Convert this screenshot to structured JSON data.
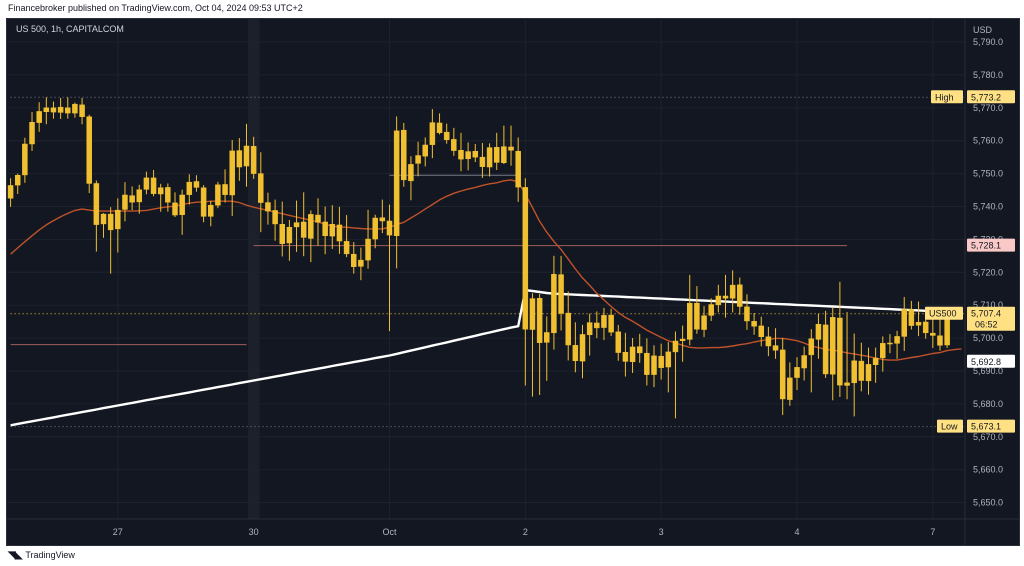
{
  "header": {
    "published_text": "Financebroker published on TradingView.com, Oct 04, 2024 09:53 UTC+2"
  },
  "legend": {
    "symbol_text": "US 500, 1h, CAPITALCOM"
  },
  "footer": {
    "brand": "TradingView",
    "logo_icon": "tradingview-logo-icon"
  },
  "chart_data": {
    "type": "candlestick",
    "currency_label": "USD",
    "y_ticks": [
      "5,790.0",
      "5,780.0",
      "5,770.0",
      "5,760.0",
      "5,750.0",
      "5,740.0",
      "5,730.0",
      "5,720.0",
      "5,710.0",
      "5,700.0",
      "5,690.0",
      "5,680.0",
      "5,670.0",
      "5,660.0",
      "5,650.0"
    ],
    "y_tick_values": [
      5790,
      5780,
      5770,
      5760,
      5750,
      5740,
      5730,
      5720,
      5710,
      5700,
      5690,
      5680,
      5670,
      5660,
      5650
    ],
    "ylim": [
      5645,
      5797
    ],
    "x_ticks": [
      {
        "label": "27",
        "index": 15
      },
      {
        "label": "30",
        "index": 34
      },
      {
        "label": "Oct",
        "index": 53
      },
      {
        "label": "2",
        "index": 72
      },
      {
        "label": "3",
        "index": 91
      },
      {
        "label": "4",
        "index": 110
      },
      {
        "label": "7",
        "index": 129
      }
    ],
    "candle_count_visible": 134,
    "price_labels": [
      {
        "name": "High",
        "value": 5773.2,
        "text": "5,773.2"
      },
      {
        "name": "US500",
        "value": 5707.4,
        "text": "5,707.4",
        "countdown": "06:52"
      },
      {
        "name": "",
        "value": 5692.8,
        "text": "5,692.8"
      },
      {
        "name": "Low",
        "value": 5673.1,
        "text": "5,673.1"
      },
      {
        "name": "",
        "value": 5728.1,
        "text": "5,728.1"
      }
    ],
    "horizontal_levels": [
      {
        "value": 5773.2,
        "from_index": 0,
        "to_index": 134,
        "color": "#787b86",
        "style": "dotted"
      },
      {
        "value": 5707.4,
        "from_index": 0,
        "to_index": 134,
        "color": "#f0c030",
        "style": "dotted"
      },
      {
        "value": 5728.1,
        "from_index": 34,
        "to_index": 117,
        "color": "#a0605a",
        "style": "solid"
      },
      {
        "value": 5698.0,
        "from_index": 0,
        "to_index": 33,
        "color": "#a0605a",
        "style": "solid"
      },
      {
        "value": 5749.5,
        "from_index": 53,
        "to_index": 71,
        "color": "#787b86",
        "style": "solid"
      },
      {
        "value": 5673.1,
        "from_index": 0,
        "to_index": 134,
        "color": "#787b86",
        "style": "dotted"
      }
    ],
    "candles": [
      [
        5742.5,
        5748.6,
        5739.9,
        5746.4
      ],
      [
        5746.5,
        5750.0,
        5743.8,
        5749.5
      ],
      [
        5749.6,
        5760.9,
        5747.2,
        5759.0
      ],
      [
        5759.0,
        5768.7,
        5756.9,
        5765.6
      ],
      [
        5765.5,
        5771.7,
        5762.7,
        5768.9
      ],
      [
        5768.8,
        5773.2,
        5765.0,
        5770.0
      ],
      [
        5770.0,
        5771.9,
        5766.7,
        5768.7
      ],
      [
        5768.6,
        5773.0,
        5766.6,
        5770.2
      ],
      [
        5770.0,
        5773.2,
        5766.7,
        5768.4
      ],
      [
        5768.4,
        5771.6,
        5767.0,
        5771.1
      ],
      [
        5770.9,
        5773.0,
        5765.0,
        5767.3
      ],
      [
        5767.3,
        5767.9,
        5744.1,
        5747.0
      ],
      [
        5747.0,
        5747.9,
        5726.3,
        5734.5
      ],
      [
        5734.7,
        5738.0,
        5730.5,
        5737.7
      ],
      [
        5737.7,
        5739.8,
        5719.6,
        5732.9
      ],
      [
        5733.2,
        5742.5,
        5726.0,
        5738.9
      ],
      [
        5739.1,
        5747.4,
        5735.5,
        5743.5
      ],
      [
        5743.3,
        5746.1,
        5738.9,
        5741.3
      ],
      [
        5741.4,
        5746.6,
        5737.8,
        5745.1
      ],
      [
        5745.2,
        5750.6,
        5743.7,
        5748.7
      ],
      [
        5748.7,
        5751.1,
        5743.1,
        5743.9
      ],
      [
        5743.8,
        5746.9,
        5738.4,
        5745.7
      ],
      [
        5745.8,
        5747.0,
        5738.4,
        5741.3
      ],
      [
        5741.1,
        5744.3,
        5736.8,
        5737.4
      ],
      [
        5737.5,
        5745.1,
        5731.4,
        5743.5
      ],
      [
        5743.6,
        5749.8,
        5740.6,
        5747.4
      ],
      [
        5747.6,
        5749.5,
        5744.5,
        5745.8
      ],
      [
        5745.7,
        5746.5,
        5735.2,
        5737.0
      ],
      [
        5737.0,
        5741.7,
        5734.0,
        5740.4
      ],
      [
        5740.4,
        5747.5,
        5739.5,
        5746.6
      ],
      [
        5746.7,
        5751.3,
        5741.2,
        5743.6
      ],
      [
        5743.5,
        5760.2,
        5737.1,
        5756.9
      ],
      [
        5757.0,
        5760.8,
        5747.8,
        5752.0
      ],
      [
        5752.3,
        5765.1,
        5746.0,
        5758.4
      ],
      [
        5758.3,
        5761.2,
        5748.4,
        5750.0
      ],
      [
        5750.0,
        5756.5,
        5732.2,
        5741.2
      ],
      [
        5741.2,
        5744.2,
        5734.5,
        5738.6
      ],
      [
        5738.8,
        5742.1,
        5729.6,
        5734.7
      ],
      [
        5734.6,
        5741.5,
        5724.8,
        5728.7
      ],
      [
        5728.9,
        5735.9,
        5723.5,
        5733.7
      ],
      [
        5733.8,
        5741.8,
        5726.2,
        5735.1
      ],
      [
        5735.3,
        5744.3,
        5724.9,
        5730.6
      ],
      [
        5730.3,
        5738.8,
        5723.1,
        5737.6
      ],
      [
        5737.4,
        5742.5,
        5728.1,
        5735.2
      ],
      [
        5735.3,
        5740.0,
        5725.5,
        5731.1
      ],
      [
        5731.0,
        5740.4,
        5727.1,
        5734.6
      ],
      [
        5734.4,
        5739.9,
        5725.6,
        5729.5
      ],
      [
        5729.4,
        5737.4,
        5724.6,
        5725.6
      ],
      [
        5725.5,
        5729.2,
        5719.6,
        5721.7
      ],
      [
        5721.8,
        5727.5,
        5717.6,
        5723.7
      ],
      [
        5723.7,
        5739.0,
        5721.1,
        5730.1
      ],
      [
        5730.1,
        5737.5,
        5727.3,
        5736.5
      ],
      [
        5736.6,
        5742.1,
        5731.9,
        5735.6
      ],
      [
        5735.6,
        5740.6,
        5702.1,
        5731.3
      ],
      [
        5731.1,
        5767.4,
        5721.2,
        5763.0
      ],
      [
        5763.2,
        5765.4,
        5746.0,
        5748.1
      ],
      [
        5747.8,
        5755.3,
        5741.9,
        5752.8
      ],
      [
        5753.1,
        5759.7,
        5749.2,
        5755.5
      ],
      [
        5755.3,
        5761.0,
        5752.2,
        5758.7
      ],
      [
        5758.8,
        5769.6,
        5754.7,
        5765.5
      ],
      [
        5765.4,
        5768.3,
        5761.9,
        5762.4
      ],
      [
        5762.6,
        5765.2,
        5759.1,
        5760.3
      ],
      [
        5760.4,
        5763.9,
        5755.4,
        5757.0
      ],
      [
        5757.1,
        5762.4,
        5750.7,
        5754.4
      ],
      [
        5754.5,
        5759.5,
        5751.0,
        5756.7
      ],
      [
        5756.8,
        5759.0,
        5753.5,
        5755.0
      ],
      [
        5755.0,
        5759.3,
        5748.7,
        5752.1
      ],
      [
        5752.0,
        5759.2,
        5749.1,
        5757.9
      ],
      [
        5758.0,
        5762.4,
        5751.1,
        5753.4
      ],
      [
        5753.3,
        5764.6,
        5752.9,
        5758.2
      ],
      [
        5758.1,
        5764.6,
        5752.4,
        5757.1
      ],
      [
        5756.8,
        5761.0,
        5741.4,
        5745.9
      ],
      [
        5745.8,
        5748.6,
        5685.6,
        5702.7
      ],
      [
        5702.6,
        5713.6,
        5682.2,
        5712.0
      ],
      [
        5712.1,
        5713.4,
        5682.7,
        5698.6
      ],
      [
        5698.7,
        5706.6,
        5687.0,
        5701.7
      ],
      [
        5701.6,
        5725.0,
        5696.5,
        5719.4
      ],
      [
        5719.3,
        5725.0,
        5702.3,
        5707.5
      ],
      [
        5707.6,
        5714.2,
        5693.2,
        5697.9
      ],
      [
        5697.8,
        5704.8,
        5689.6,
        5693.1
      ],
      [
        5693.0,
        5704.0,
        5687.8,
        5701.1
      ],
      [
        5701.0,
        5707.4,
        5694.7,
        5704.7
      ],
      [
        5704.6,
        5708.1,
        5700.0,
        5703.1
      ],
      [
        5703.2,
        5709.2,
        5699.4,
        5706.9
      ],
      [
        5707.0,
        5708.9,
        5700.6,
        5701.8
      ],
      [
        5701.9,
        5704.0,
        5693.1,
        5695.6
      ],
      [
        5695.7,
        5701.6,
        5688.3,
        5692.9
      ],
      [
        5692.8,
        5700.0,
        5689.4,
        5697.3
      ],
      [
        5697.4,
        5701.3,
        5692.5,
        5695.5
      ],
      [
        5695.4,
        5699.9,
        5685.6,
        5688.9
      ],
      [
        5688.9,
        5697.8,
        5685.1,
        5694.6
      ],
      [
        5694.5,
        5698.3,
        5687.4,
        5691.0
      ],
      [
        5691.2,
        5698.8,
        5683.5,
        5695.8
      ],
      [
        5695.8,
        5702.0,
        5675.6,
        5699.1
      ],
      [
        5699.2,
        5703.8,
        5692.8,
        5699.7
      ],
      [
        5699.6,
        5719.2,
        5697.8,
        5710.6
      ],
      [
        5710.6,
        5715.8,
        5701.3,
        5702.7
      ],
      [
        5702.6,
        5709.7,
        5700.3,
        5706.8
      ],
      [
        5706.9,
        5712.1,
        5705.2,
        5710.2
      ],
      [
        5710.1,
        5716.2,
        5707.8,
        5712.8
      ],
      [
        5712.8,
        5719.2,
        5706.2,
        5712.1
      ],
      [
        5712.1,
        5720.6,
        5707.8,
        5716.1
      ],
      [
        5716.2,
        5718.4,
        5707.1,
        5709.6
      ],
      [
        5709.5,
        5713.3,
        5702.5,
        5705.2
      ],
      [
        5705.1,
        5707.6,
        5701.0,
        5703.6
      ],
      [
        5703.7,
        5706.5,
        5697.5,
        5700.4
      ],
      [
        5700.4,
        5703.4,
        5694.5,
        5697.6
      ],
      [
        5697.7,
        5703.0,
        5693.7,
        5696.3
      ],
      [
        5696.4,
        5700.0,
        5676.6,
        5681.5
      ],
      [
        5681.3,
        5692.6,
        5679.4,
        5687.9
      ],
      [
        5688.0,
        5694.2,
        5684.2,
        5691.1
      ],
      [
        5690.9,
        5697.4,
        5687.1,
        5694.7
      ],
      [
        5694.9,
        5702.7,
        5683.5,
        5699.8
      ],
      [
        5699.6,
        5707.4,
        5693.7,
        5704.2
      ],
      [
        5704.0,
        5708.3,
        5687.9,
        5689.1
      ],
      [
        5689.0,
        5709.4,
        5681.1,
        5706.3
      ],
      [
        5706.1,
        5717.1,
        5682.1,
        5685.7
      ],
      [
        5685.6,
        5707.9,
        5681.4,
        5686.4
      ],
      [
        5686.4,
        5701.4,
        5676.2,
        5693.1
      ],
      [
        5693.0,
        5698.6,
        5683.8,
        5687.1
      ],
      [
        5687.0,
        5697.1,
        5682.8,
        5692.0
      ],
      [
        5691.9,
        5697.1,
        5686.4,
        5693.9
      ],
      [
        5694.0,
        5700.5,
        5689.8,
        5698.4
      ],
      [
        5698.5,
        5701.2,
        5695.4,
        5698.5
      ],
      [
        5698.4,
        5702.2,
        5693.7,
        5700.5
      ],
      [
        5700.5,
        5712.5,
        5696.1,
        5708.7
      ],
      [
        5708.7,
        5711.3,
        5702.6,
        5703.8
      ],
      [
        5703.9,
        5711.1,
        5700.6,
        5704.8
      ],
      [
        5704.9,
        5709.4,
        5699.8,
        5701.6
      ],
      [
        5701.5,
        5705.7,
        5697.0,
        5700.8
      ],
      [
        5700.7,
        5707.5,
        5696.2,
        5697.8
      ],
      [
        5697.9,
        5708.8,
        5697.0,
        5707.4
      ]
    ],
    "ema_fast": [
      5725.5,
      5727.4,
      5729.3,
      5731.1,
      5732.9,
      5734.4,
      5735.7,
      5736.9,
      5737.9,
      5738.8,
      5739.2,
      5738.9,
      5738.6,
      5738.6,
      5738.6,
      5738.6,
      5738.6,
      5738.6,
      5738.7,
      5738.8,
      5739.2,
      5739.6,
      5739.9,
      5740.1,
      5740.6,
      5741.0,
      5741.3,
      5741.4,
      5741.6,
      5741.6,
      5741.6,
      5741.6,
      5741.2,
      5740.4,
      5739.8,
      5739.3,
      5738.8,
      5738.3,
      5737.8,
      5737.3,
      5736.8,
      5736.3,
      5735.8,
      5735.3,
      5734.6,
      5734.0,
      5733.8,
      5733.7,
      5733.5,
      5733.3,
      5733.2,
      5733.2,
      5733.2,
      5733.7,
      5734.5,
      5735.2,
      5736.5,
      5737.8,
      5739.2,
      5740.6,
      5742.0,
      5743.1,
      5744.0,
      5744.7,
      5745.3,
      5745.8,
      5746.4,
      5746.9,
      5747.2,
      5747.8,
      5748.1,
      5747.5,
      5743.7,
      5739.7,
      5735.5,
      5732.2,
      5729.4,
      5726.9,
      5724.0,
      5721.0,
      5718.3,
      5716.0,
      5713.6,
      5711.6,
      5709.6,
      5707.8,
      5706.3,
      5705.1,
      5703.8,
      5702.4,
      5701.3,
      5700.2,
      5699.2,
      5698.5,
      5697.8,
      5697.2,
      5697.0,
      5697.0,
      5697.1,
      5697.1,
      5697.3,
      5697.6,
      5698.0,
      5698.3,
      5698.8,
      5699.2,
      5699.6,
      5699.9,
      5699.9,
      5699.6,
      5699.2,
      5698.5,
      5697.6,
      5697.1,
      5696.6,
      5696.3,
      5696.0,
      5695.5,
      5695.2,
      5694.8,
      5694.4,
      5693.9,
      5693.5,
      5693.3,
      5693.3,
      5693.7,
      5694.1,
      5694.4,
      5694.9,
      5695.3,
      5695.6,
      5696.2,
      5696.5,
      5696.7
    ],
    "ema_slow": [
      5673.5,
      5673.9,
      5674.3,
      5674.7,
      5675.1,
      5675.5,
      5675.9,
      5676.3,
      5676.7,
      5677.1,
      5677.5,
      5677.9,
      5678.3,
      5678.7,
      5679.1,
      5679.5,
      5679.9,
      5680.3,
      5680.7,
      5681.1,
      5681.5,
      5681.9,
      5682.3,
      5682.7,
      5683.1,
      5683.5,
      5683.9,
      5684.3,
      5684.7,
      5685.1,
      5685.5,
      5685.9,
      5686.3,
      5686.7,
      5687.1,
      5687.5,
      5687.9,
      5688.3,
      5688.7,
      5689.1,
      5689.5,
      5689.9,
      5690.3,
      5690.7,
      5691.1,
      5691.5,
      5691.9,
      5692.3,
      5692.7,
      5693.1,
      5693.5,
      5693.9,
      5694.3,
      5694.7,
      5695.2,
      5695.7,
      5696.2,
      5696.7,
      5697.2,
      5697.7,
      5698.2,
      5698.7,
      5699.2,
      5699.7,
      5700.2,
      5700.7,
      5701.2,
      5701.7,
      5702.2,
      5702.7,
      5703.2,
      5703.6,
      5714.6,
      5714.3,
      5714.0,
      5713.7,
      5713.5,
      5713.4,
      5713.3,
      5713.2,
      5713.1,
      5713.0,
      5712.9,
      5712.8,
      5712.7,
      5712.6,
      5712.5,
      5712.4,
      5712.3,
      5712.2,
      5712.1,
      5712.0,
      5711.9,
      5711.8,
      5711.7,
      5711.6,
      5711.5,
      5711.4,
      5711.3,
      5711.2,
      5711.1,
      5711.0,
      5710.9,
      5710.8,
      5710.7,
      5710.6,
      5710.5,
      5710.4,
      5710.3,
      5710.2,
      5710.1,
      5710.0,
      5709.9,
      5709.8,
      5709.7,
      5709.6,
      5709.5,
      5709.4,
      5709.3,
      5709.2,
      5709.1,
      5709.0,
      5708.9,
      5708.8,
      5708.7,
      5708.6,
      5708.5,
      5708.4,
      5708.3,
      5708.2,
      5708.1,
      5708.0,
      5707.9,
      5707.8
    ],
    "colors": {
      "background": "#131722",
      "candle": "#f0c030",
      "ema_fast": "#c0522a",
      "ema_slow": "#ffffff",
      "grid": "#1e222d",
      "axis_text": "#b2b5be",
      "label_bg": "#ffe082",
      "label_text": "#131722",
      "mid_label_bg": "#ffffff",
      "level_label_bg": "#f8c9c6"
    }
  }
}
